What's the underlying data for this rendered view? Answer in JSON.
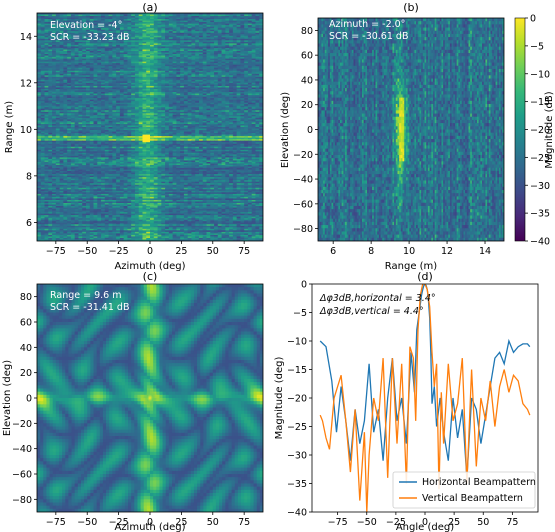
{
  "panels": [
    {
      "id": "a",
      "title": "(a)",
      "type": "heatmap",
      "xlabel": "Azimuth (deg)",
      "ylabel": "Range (m)",
      "xlim": [
        -90,
        90
      ],
      "ylim": [
        5.2,
        15.0
      ],
      "xticks": [
        -75,
        -50,
        -25,
        0,
        25,
        50,
        75
      ],
      "yticks": [
        6,
        8,
        10,
        12,
        14
      ],
      "annotation": [
        "Elevation = -4°",
        "SCR  = -33.23 dB"
      ]
    },
    {
      "id": "b",
      "title": "(b)",
      "type": "heatmap",
      "xlabel": "Range (m)",
      "ylabel": "Elevation (deg)",
      "xlim": [
        5.2,
        15.0
      ],
      "ylim": [
        -90,
        90
      ],
      "xticks": [
        6,
        8,
        10,
        12,
        14
      ],
      "yticks": [
        -80,
        -60,
        -40,
        -20,
        0,
        20,
        40,
        60,
        80
      ],
      "annotation": [
        "Azimuth = -2.0°",
        "SCR  = -30.61 dB"
      ],
      "colorbar": {
        "label": "Magnitude (dB)",
        "range": [
          -40,
          0
        ],
        "ticks": [
          0,
          -5,
          -10,
          -15,
          -20,
          -25,
          -30,
          -35,
          -40
        ]
      }
    },
    {
      "id": "c",
      "title": "(c)",
      "type": "heatmap",
      "xlabel": "Azimuth (deg)",
      "ylabel": "Elevation (deg)",
      "xlim": [
        -90,
        90
      ],
      "ylim": [
        -90,
        90
      ],
      "xticks": [
        -75,
        -50,
        -25,
        0,
        25,
        50,
        75
      ],
      "yticks": [
        -80,
        -60,
        -40,
        -20,
        0,
        20,
        40,
        60,
        80
      ],
      "annotation": [
        "Range = 9.6 m",
        "SCR  = -31.41 dB"
      ]
    },
    {
      "id": "d",
      "title": "(d)",
      "type": "line",
      "xlabel": "Angle (deg)",
      "ylabel": "Magnitude (deg)",
      "xlim": [
        -97,
        97
      ],
      "ylim": [
        -40,
        0
      ],
      "xticks": [
        -75,
        -50,
        -25,
        0,
        25,
        50,
        75
      ],
      "yticks": [
        0,
        -5,
        -10,
        -15,
        -20,
        -25,
        -30,
        -35,
        -40
      ],
      "annotation": [
        "Δφ3dB,horizontal = 3.4°",
        "Δφ3dB,vertical = 4.4°"
      ]
    }
  ],
  "colors": {
    "horizontal": "#1f77b4",
    "vertical": "#ff7f0e",
    "colormap": [
      "#440154",
      "#482878",
      "#3e4a89",
      "#31688e",
      "#26828e",
      "#1f9e89",
      "#35b779",
      "#6ece58",
      "#b5de2b",
      "#fde725"
    ]
  },
  "chart_data": {
    "type": "line",
    "title": "(d)",
    "xlabel": "Angle (deg)",
    "ylabel": "Magnitude (deg)",
    "xlim": [
      -97,
      97
    ],
    "ylim": [
      -40,
      0
    ],
    "legend_position": "bottom-right",
    "series": [
      {
        "name": "Horizontal Beampattern",
        "x": [
          -90,
          -85,
          -80,
          -76,
          -72,
          -68,
          -64,
          -60,
          -56,
          -52,
          -48,
          -44,
          -40,
          -36,
          -32,
          -28,
          -24,
          -20,
          -16,
          -12,
          -9,
          -7,
          -5,
          -3,
          -2,
          -1,
          0,
          1,
          2,
          3,
          4,
          5,
          6,
          8,
          10,
          13,
          16,
          20,
          24,
          28,
          32,
          36,
          40,
          44,
          48,
          52,
          56,
          60,
          64,
          68,
          72,
          76,
          80,
          84,
          88,
          90
        ],
        "y": [
          -10,
          -11,
          -17,
          -26,
          -18,
          -24,
          -31,
          -22,
          -28,
          -24,
          -14,
          -26,
          -22,
          -31,
          -20,
          -13,
          -24,
          -20,
          -28,
          -12,
          -19,
          -8,
          -5,
          -2,
          -1,
          -0.3,
          0,
          -0.3,
          -1,
          -3,
          -6,
          -12,
          -21,
          -18,
          -25,
          -20,
          -26,
          -31,
          -20,
          -27,
          -22,
          -34,
          -20,
          -22,
          -28,
          -23,
          -18,
          -13,
          -12,
          -14,
          -10,
          -12,
          -11,
          -10.5,
          -10.5,
          -11
        ]
      },
      {
        "name": "Vertical Beampattern",
        "x": [
          -90,
          -88,
          -85,
          -82,
          -78,
          -75,
          -72,
          -68,
          -64,
          -60,
          -56,
          -52,
          -50,
          -48,
          -44,
          -40,
          -36,
          -32,
          -28,
          -24,
          -20,
          -16,
          -13,
          -10,
          -8,
          -6,
          -4,
          -2,
          0,
          2,
          4,
          6,
          8,
          10,
          12,
          14,
          16,
          20,
          24,
          28,
          32,
          36,
          40,
          44,
          48,
          52,
          56,
          60,
          64,
          68,
          72,
          76,
          80,
          84,
          88,
          90
        ],
        "y": [
          -23,
          -24,
          -27,
          -29,
          -20,
          -18,
          -16,
          -24,
          -33,
          -22,
          -38,
          -26,
          -40,
          -30,
          -20,
          -24,
          -13,
          -34,
          -13,
          -28,
          -14,
          -35,
          -11,
          -13,
          -24,
          -8,
          -2,
          0,
          0,
          -1,
          -4,
          -12,
          -18,
          -14,
          -36,
          -19,
          -28,
          -14,
          -24,
          -21,
          -13,
          -35,
          -15,
          -32,
          -20,
          -24,
          -17,
          -25,
          -18,
          -15,
          -19,
          -16,
          -17,
          -21,
          -22,
          -23
        ]
      }
    ]
  }
}
